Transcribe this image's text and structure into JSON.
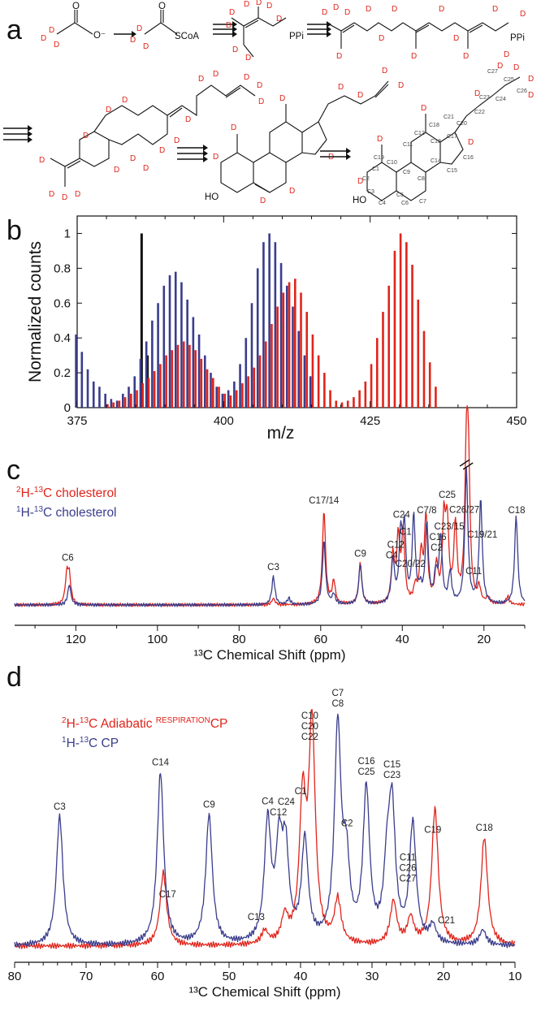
{
  "colors": {
    "red": "#e0241b",
    "blue": "#3a3d8c",
    "black": "#111111"
  },
  "panels": {
    "a": {
      "letter": "a",
      "labels": {
        "ion": "O⁻",
        "scoa": "SCoA",
        "ppi1": "PPi",
        "ppi2": "PPi",
        "ho1": "HO",
        "ho2": "HO",
        "oxygen": "O",
        "d": "D"
      },
      "carbon_labels": [
        "C1",
        "C2",
        "C3",
        "C4",
        "C5",
        "C6",
        "C7",
        "C8",
        "C9",
        "C10",
        "C11",
        "C12",
        "C13",
        "C14",
        "C15",
        "C16",
        "C17",
        "C18",
        "C19",
        "C20",
        "C21",
        "C22",
        "C23",
        "C24",
        "C25",
        "C26",
        "C27"
      ]
    },
    "b": {
      "letter": "b"
    },
    "c": {
      "letter": "c",
      "legend": [
        {
          "sup": "2",
          "mid": "H-",
          "sup2": "13",
          "text": "C cholesterol",
          "color": "#e0241b"
        },
        {
          "sup": "1",
          "mid": "H-",
          "sup2": "13",
          "text": "C cholesterol",
          "color": "#3a3d8c"
        }
      ]
    },
    "d": {
      "letter": "d",
      "legend": [
        {
          "sup": "2",
          "mid": "H-",
          "sup2": "13",
          "text": "C Adiabatic ",
          "sup3": "RESPIRATION",
          "tail": "CP",
          "color": "#e0241b"
        },
        {
          "sup": "1",
          "mid": "H-",
          "sup2": "13",
          "text": "C CP",
          "color": "#3a3d8c"
        }
      ]
    }
  },
  "chart_data": [
    {
      "panel": "b",
      "type": "bar",
      "xlabel": "m/z",
      "ylabel": "Normalized counts",
      "xlim": [
        375,
        450
      ],
      "ylim": [
        0,
        1.1
      ],
      "xticks": [
        375,
        400,
        425,
        450
      ],
      "yticks": [
        0,
        0.2,
        0.4,
        0.6,
        0.8,
        1
      ],
      "series": [
        {
          "color": "#111111",
          "x": [
            386,
            387
          ],
          "values": [
            1.0,
            0.3
          ]
        },
        {
          "color": "#3a3d8c",
          "x": [
            375,
            376,
            377,
            378,
            379,
            380,
            381,
            382,
            383,
            384,
            385,
            386,
            387,
            388,
            389,
            390,
            391,
            392,
            393,
            394,
            395,
            396,
            397,
            398,
            399,
            400,
            401,
            402,
            403,
            404,
            405,
            406,
            407,
            408,
            409,
            410,
            411,
            412,
            413,
            414,
            415
          ],
          "values": [
            0.42,
            0.32,
            0.22,
            0.15,
            0.12,
            0.08,
            0.05,
            0.04,
            0.08,
            0.12,
            0.18,
            0.28,
            0.38,
            0.5,
            0.6,
            0.7,
            0.76,
            0.78,
            0.72,
            0.62,
            0.52,
            0.42,
            0.3,
            0.2,
            0.12,
            0.08,
            0.1,
            0.15,
            0.25,
            0.4,
            0.6,
            0.8,
            0.95,
            1.0,
            0.95,
            0.83,
            0.7,
            0.58,
            0.44,
            0.3,
            0.18
          ]
        },
        {
          "color": "#e0241b",
          "x": [
            380,
            381,
            382,
            383,
            384,
            385,
            386,
            387,
            388,
            389,
            390,
            391,
            392,
            393,
            394,
            395,
            396,
            397,
            398,
            399,
            400,
            401,
            402,
            403,
            404,
            405,
            406,
            407,
            408,
            409,
            410,
            411,
            412,
            413,
            414,
            415,
            416,
            417,
            418,
            419,
            420,
            421,
            422,
            423,
            424,
            425,
            426,
            427,
            428,
            429,
            430,
            431,
            432,
            433,
            434,
            435,
            436
          ],
          "values": [
            0.02,
            0.03,
            0.04,
            0.06,
            0.08,
            0.1,
            0.14,
            0.17,
            0.21,
            0.25,
            0.3,
            0.33,
            0.36,
            0.38,
            0.36,
            0.33,
            0.28,
            0.22,
            0.17,
            0.12,
            0.08,
            0.07,
            0.1,
            0.14,
            0.18,
            0.23,
            0.3,
            0.38,
            0.48,
            0.58,
            0.66,
            0.72,
            0.74,
            0.66,
            0.55,
            0.42,
            0.3,
            0.2,
            0.1,
            0.04,
            0.03,
            0.04,
            0.06,
            0.1,
            0.15,
            0.25,
            0.4,
            0.55,
            0.7,
            0.9,
            1.0,
            0.95,
            0.82,
            0.62,
            0.44,
            0.26,
            0.12
          ]
        }
      ]
    },
    {
      "panel": "c",
      "type": "line",
      "xlabel": "¹³C Chemical Shift (ppm)",
      "xlim": [
        135,
        10
      ],
      "xticks": [
        120,
        100,
        80,
        60,
        40,
        20
      ],
      "ylim": [
        0,
        1.15
      ],
      "series": [
        {
          "name": "²H-¹³C cholesterol",
          "color": "#e0241b",
          "peaks": [
            [
              122.2,
              0.22
            ],
            [
              121.6,
              0.2
            ],
            [
              71.6,
              0.05
            ],
            [
              56.8,
              0.18
            ],
            [
              59.2,
              0.74
            ],
            [
              50.3,
              0.32
            ],
            [
              42.3,
              0.37
            ],
            [
              41.0,
              0.5
            ],
            [
              39.8,
              0.54
            ],
            [
              36.8,
              0.12
            ],
            [
              35.4,
              0.37
            ],
            [
              34.2,
              0.67
            ],
            [
              31.6,
              0.28
            ],
            [
              29.8,
              0.62
            ],
            [
              29.0,
              0.58
            ],
            [
              27.0,
              0.6
            ],
            [
              24.3,
              1.05
            ],
            [
              23.8,
              0.95
            ],
            [
              21.2,
              0.12
            ],
            [
              19.0,
              0.05
            ],
            [
              14.2,
              0.06
            ]
          ]
        },
        {
          "name": "¹H-¹³C cholesterol",
          "color": "#3a3d8c",
          "peaks": [
            [
              121.6,
              0.16
            ],
            [
              71.6,
              0.22
            ],
            [
              67.8,
              0.05
            ],
            [
              59.2,
              0.5
            ],
            [
              56.8,
              0.08
            ],
            [
              50.3,
              0.32
            ],
            [
              42.3,
              0.34
            ],
            [
              40.4,
              0.52
            ],
            [
              39.5,
              0.56
            ],
            [
              37.2,
              0.68
            ],
            [
              35.6,
              0.1
            ],
            [
              34.0,
              0.62
            ],
            [
              31.8,
              0.22
            ],
            [
              30.6,
              0.52
            ],
            [
              28.3,
              0.24
            ],
            [
              24.3,
              1.05
            ],
            [
              20.8,
              0.82
            ],
            [
              12.1,
              0.7
            ]
          ]
        }
      ],
      "peak_labels": [
        {
          "text": "C6",
          "x": 122.0
        },
        {
          "text": "C3",
          "x": 71.6
        },
        {
          "text": "C17/14",
          "x": 59.2
        },
        {
          "text": "C9",
          "x": 50.3
        },
        {
          "text": "C4",
          "x": 42.6
        },
        {
          "text": "C12",
          "x": 41.6
        },
        {
          "text": "C24",
          "x": 40.2
        },
        {
          "text": "C1",
          "x": 39.2
        },
        {
          "text": "C20/22",
          "x": 38.0
        },
        {
          "text": "C7/8",
          "x": 34.0
        },
        {
          "text": "C2",
          "x": 31.6
        },
        {
          "text": "C16",
          "x": 31.3
        },
        {
          "text": "C25",
          "x": 29.0
        },
        {
          "text": "C23/15",
          "x": 28.5
        },
        {
          "text": "C26/27",
          "x": 24.8
        },
        {
          "text": "C11",
          "x": 22.5
        },
        {
          "text": "C19/21",
          "x": 20.4
        },
        {
          "text": "C18",
          "x": 12.0
        }
      ]
    },
    {
      "panel": "d",
      "type": "line",
      "xlabel": "¹³C Chemical Shift (ppm)",
      "xlim": [
        80,
        10
      ],
      "xticks": [
        80,
        70,
        60,
        50,
        40,
        30,
        20,
        10
      ],
      "ylim": [
        0,
        1.15
      ],
      "series": [
        {
          "name": "²H-¹³C Adiabatic RESPIRATIONCP",
          "color": "#e0241b",
          "peaks": [
            [
              59.2,
              0.34
            ],
            [
              45.0,
              0.06
            ],
            [
              42.2,
              0.12
            ],
            [
              39.7,
              0.64
            ],
            [
              38.4,
              1.0
            ],
            [
              34.8,
              0.2
            ],
            [
              27.0,
              0.2
            ],
            [
              24.6,
              0.12
            ],
            [
              21.2,
              0.63
            ],
            [
              14.3,
              0.5
            ]
          ]
        },
        {
          "name": "¹H-¹³C CP",
          "color": "#3a3d8c",
          "peaks": [
            [
              73.7,
              0.6
            ],
            [
              59.6,
              0.8
            ],
            [
              52.8,
              0.6
            ],
            [
              44.6,
              0.55
            ],
            [
              43.0,
              0.41
            ],
            [
              42.1,
              0.4
            ],
            [
              39.4,
              0.47
            ],
            [
              33.6,
              0.34
            ],
            [
              34.8,
              0.99
            ],
            [
              30.8,
              0.7
            ],
            [
              27.9,
              0.3
            ],
            [
              27.2,
              0.59
            ],
            [
              24.3,
              0.55
            ],
            [
              21.5,
              0.08
            ],
            [
              14.5,
              0.07
            ]
          ]
        }
      ],
      "peak_labels": [
        {
          "text": "C3",
          "x": 73.7
        },
        {
          "text": "C14",
          "x": 59.6
        },
        {
          "text": "C17",
          "x": 58.6
        },
        {
          "text": "C9",
          "x": 52.8
        },
        {
          "text": "C13",
          "x": 46.2
        },
        {
          "text": "C4",
          "x": 44.6
        },
        {
          "text": "C12",
          "x": 43.1
        },
        {
          "text": "C24",
          "x": 42.0
        },
        {
          "text": "C1",
          "x": 40.0
        },
        {
          "text": "C22",
          "x": 38.7
        },
        {
          "text": "C20",
          "x": 38.7
        },
        {
          "text": "C10",
          "x": 38.7
        },
        {
          "text": "C8",
          "x": 34.8
        },
        {
          "text": "C7",
          "x": 34.8
        },
        {
          "text": "C2",
          "x": 33.5
        },
        {
          "text": "C25",
          "x": 30.8
        },
        {
          "text": "C16",
          "x": 30.8
        },
        {
          "text": "C23",
          "x": 27.2
        },
        {
          "text": "C15",
          "x": 27.2
        },
        {
          "text": "C27",
          "x": 25.0
        },
        {
          "text": "C26",
          "x": 25.0
        },
        {
          "text": "C11",
          "x": 25.0
        },
        {
          "text": "C19",
          "x": 21.5
        },
        {
          "text": "C21",
          "x": 19.6
        },
        {
          "text": "C18",
          "x": 14.3
        }
      ]
    }
  ]
}
